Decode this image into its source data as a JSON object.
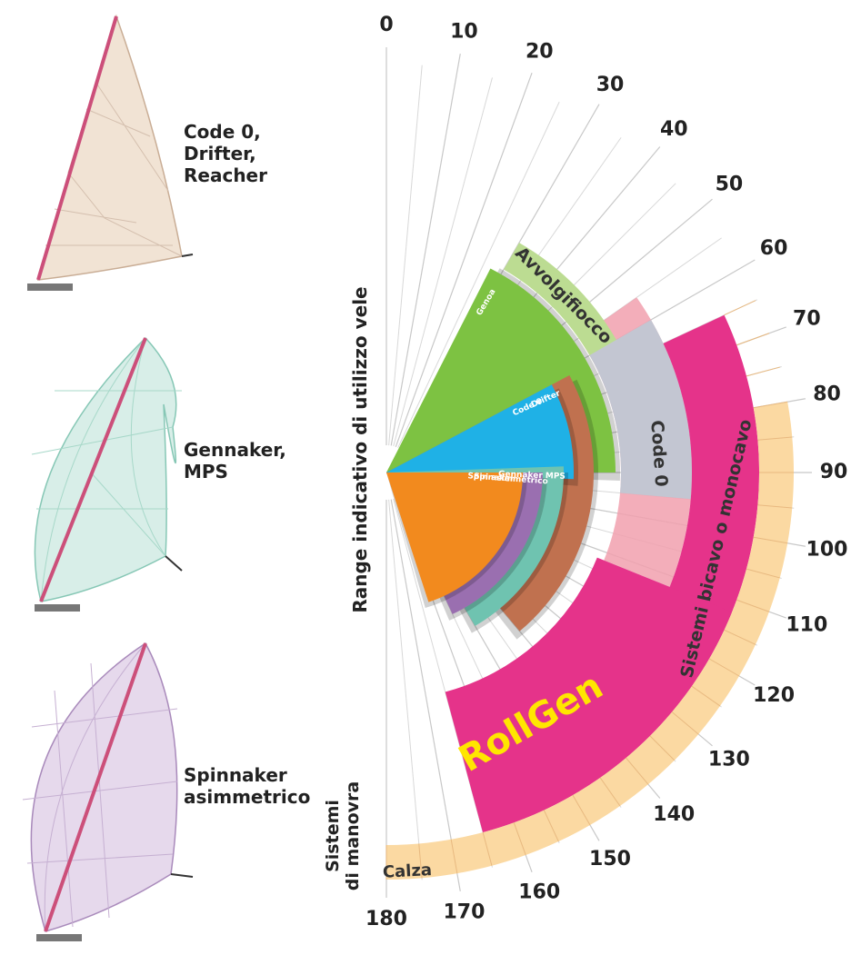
{
  "sails": [
    {
      "lines": [
        "Code 0,",
        "Drifter,",
        "Reacher"
      ]
    },
    {
      "lines": [
        "Gennaker,",
        "MPS"
      ]
    },
    {
      "lines": [
        "Spinnaker",
        "asimmetrico"
      ]
    }
  ],
  "axis_title": "Range indicativo di utilizzo vele",
  "systems_title": [
    "Sistemi",
    "di manovra"
  ],
  "angles": [
    0,
    10,
    20,
    30,
    40,
    50,
    60,
    70,
    80,
    90,
    100,
    110,
    120,
    130,
    140,
    150,
    160,
    170,
    180
  ],
  "sail_ranges": [
    {
      "label": "Genoa",
      "from": 27,
      "to": 90,
      "color": "#7dc242"
    },
    {
      "label": "Drifter",
      "from": 62,
      "to": 140,
      "color": "#c0714f"
    },
    {
      "label": "Code 0",
      "from": 62,
      "to": 92,
      "color": "#1fb1e6"
    },
    {
      "label": "Gennaker MPS",
      "from": 88,
      "to": 150,
      "color": "#6fc3b0"
    },
    {
      "label": "Spi asimmetrico",
      "from": 90,
      "to": 155,
      "color": "#9a6fb0"
    },
    {
      "label": "Spinnaker",
      "from": 90,
      "to": 162,
      "color": "#f28a1e"
    }
  ],
  "systems": [
    {
      "label": "Avvolgifiocco",
      "from": 30,
      "to": 62,
      "color": "#bcdc92"
    },
    {
      "label": "Code 0",
      "from": 60,
      "to": 95,
      "color": "#c3c6d2"
    },
    {
      "label": "Sistemi bicavo o monocavo",
      "from": 65,
      "to": 165,
      "color": "#e5338a"
    },
    {
      "label": "RollGen",
      "from": 112,
      "to": 165,
      "color": "#e5338a"
    },
    {
      "label": "Calza",
      "from": 80,
      "to": 180,
      "color": "#fbd9a2"
    }
  ]
}
